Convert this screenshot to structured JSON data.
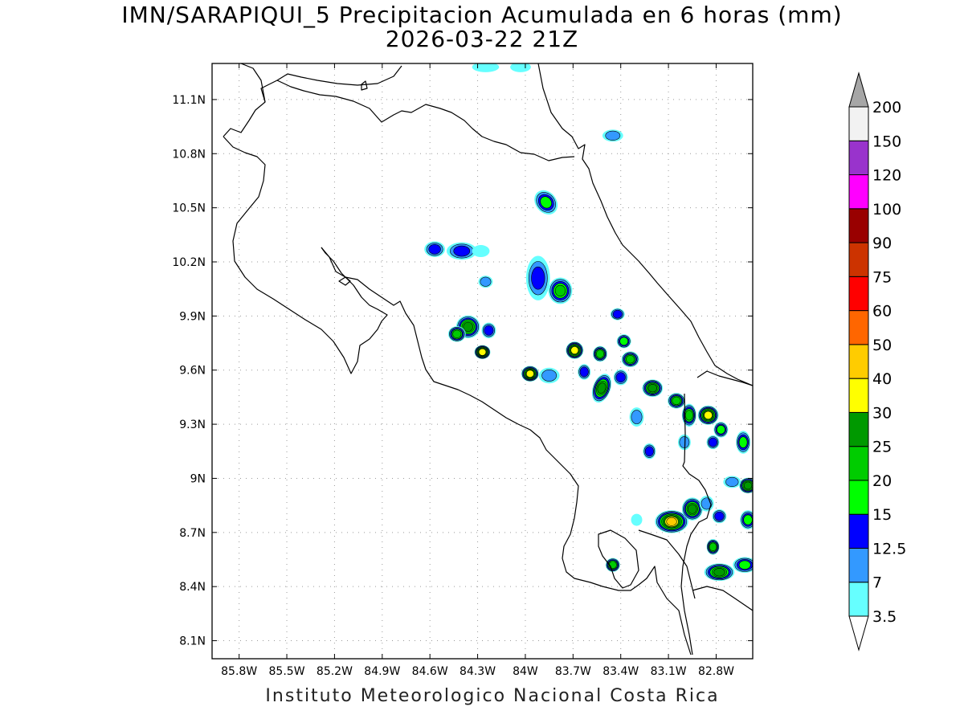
{
  "title": {
    "line1": "IMN/SARAPIQUI_5 Precipitacion Acumulada en 6 horas (mm)",
    "line2": "2026-03-22 21Z"
  },
  "footer": "Instituto Meteorologico Nacional Costa Rica",
  "map": {
    "lat_ticks": [
      {
        "value": 11.1,
        "label": "11.1N"
      },
      {
        "value": 10.8,
        "label": "10.8N"
      },
      {
        "value": 10.5,
        "label": "10.5N"
      },
      {
        "value": 10.2,
        "label": "10.2N"
      },
      {
        "value": 9.9,
        "label": "9.9N"
      },
      {
        "value": 9.6,
        "label": "9.6N"
      },
      {
        "value": 9.3,
        "label": "9.3N"
      },
      {
        "value": 9.0,
        "label": "9N"
      },
      {
        "value": 8.7,
        "label": "8.7N"
      },
      {
        "value": 8.4,
        "label": "8.4N"
      },
      {
        "value": 8.1,
        "label": "8.1N"
      }
    ],
    "lon_ticks": [
      {
        "value": -85.8,
        "label": "85.8W"
      },
      {
        "value": -85.5,
        "label": "85.5W"
      },
      {
        "value": -85.2,
        "label": "85.2W"
      },
      {
        "value": -84.9,
        "label": "84.9W"
      },
      {
        "value": -84.6,
        "label": "84.6W"
      },
      {
        "value": -84.3,
        "label": "84.3W"
      },
      {
        "value": -84.0,
        "label": "84W"
      },
      {
        "value": -83.7,
        "label": "83.7W"
      },
      {
        "value": -83.4,
        "label": "83.4W"
      },
      {
        "value": -83.1,
        "label": "83.1W"
      },
      {
        "value": -82.8,
        "label": "82.8W"
      }
    ],
    "lon_range": [
      -85.97,
      -82.57
    ],
    "lat_range": [
      8.0,
      11.3
    ]
  },
  "colorbar": {
    "levels": [
      "3.5",
      "7",
      "12.5",
      "15",
      "20",
      "25",
      "30",
      "40",
      "50",
      "60",
      "75",
      "90",
      "100",
      "120",
      "150",
      "200"
    ],
    "colors": [
      "#66ffff",
      "#3399ff",
      "#0000ff",
      "#00ff00",
      "#00cc00",
      "#009900",
      "#ffff00",
      "#ffcc00",
      "#ff6600",
      "#ff0000",
      "#cc3300",
      "#990000",
      "#ff00ff",
      "#9933cc",
      "#f2f2f2"
    ],
    "over_color": "#a6a6a6",
    "under_color": "#ffffff"
  },
  "rain_cells": [
    {
      "lon": -84.25,
      "lat": 11.28,
      "rx": 0.07,
      "ry": 0.015,
      "level": 1
    },
    {
      "lon": -84.03,
      "lat": 11.28,
      "rx": 0.05,
      "ry": 0.015,
      "level": 1
    },
    {
      "lon": -83.45,
      "lat": 10.9,
      "rx": 0.05,
      "ry": 0.02,
      "level": 2
    },
    {
      "lon": -83.87,
      "lat": 10.53,
      "rx": 0.05,
      "ry": 0.06,
      "level": 4,
      "rot": -40
    },
    {
      "lon": -84.57,
      "lat": 10.27,
      "rx": 0.05,
      "ry": 0.03,
      "level": 3
    },
    {
      "lon": -84.4,
      "lat": 10.26,
      "rx": 0.08,
      "ry": 0.035,
      "level": 3
    },
    {
      "lon": -84.28,
      "lat": 10.26,
      "rx": 0.04,
      "ry": 0.02,
      "level": 1
    },
    {
      "lon": -84.25,
      "lat": 10.09,
      "rx": 0.03,
      "ry": 0.02,
      "level": 2
    },
    {
      "lon": -83.92,
      "lat": 10.11,
      "rx": 0.06,
      "ry": 0.11,
      "level": 3
    },
    {
      "lon": -83.78,
      "lat": 10.04,
      "rx": 0.06,
      "ry": 0.06,
      "level": 5
    },
    {
      "lon": -84.36,
      "lat": 9.84,
      "rx": 0.06,
      "ry": 0.05,
      "level": 6
    },
    {
      "lon": -84.43,
      "lat": 9.8,
      "rx": 0.04,
      "ry": 0.03,
      "level": 5
    },
    {
      "lon": -84.23,
      "lat": 9.82,
      "rx": 0.03,
      "ry": 0.03,
      "level": 3
    },
    {
      "lon": -84.27,
      "lat": 9.7,
      "rx": 0.035,
      "ry": 0.025,
      "level": 7
    },
    {
      "lon": -83.97,
      "lat": 9.58,
      "rx": 0.04,
      "ry": 0.03,
      "level": 7
    },
    {
      "lon": -83.85,
      "lat": 9.57,
      "rx": 0.05,
      "ry": 0.03,
      "level": 2
    },
    {
      "lon": -83.69,
      "lat": 9.71,
      "rx": 0.04,
      "ry": 0.035,
      "level": 7
    },
    {
      "lon": -83.53,
      "lat": 9.69,
      "rx": 0.03,
      "ry": 0.03,
      "level": 5
    },
    {
      "lon": -83.38,
      "lat": 9.76,
      "rx": 0.03,
      "ry": 0.025,
      "level": 4
    },
    {
      "lon": -83.42,
      "lat": 9.91,
      "rx": 0.03,
      "ry": 0.02,
      "level": 3
    },
    {
      "lon": -83.63,
      "lat": 9.59,
      "rx": 0.025,
      "ry": 0.03,
      "level": 3
    },
    {
      "lon": -83.52,
      "lat": 9.5,
      "rx": 0.04,
      "ry": 0.07,
      "level": 6,
      "rot": 20
    },
    {
      "lon": -83.34,
      "lat": 9.66,
      "rx": 0.04,
      "ry": 0.03,
      "level": 5
    },
    {
      "lon": -83.4,
      "lat": 9.56,
      "rx": 0.03,
      "ry": 0.03,
      "level": 3
    },
    {
      "lon": -83.2,
      "lat": 9.5,
      "rx": 0.05,
      "ry": 0.035,
      "level": 6
    },
    {
      "lon": -83.05,
      "lat": 9.43,
      "rx": 0.04,
      "ry": 0.03,
      "level": 5
    },
    {
      "lon": -82.97,
      "lat": 9.35,
      "rx": 0.03,
      "ry": 0.05,
      "level": 5
    },
    {
      "lon": -83.3,
      "lat": 9.34,
      "rx": 0.03,
      "ry": 0.04,
      "level": 2
    },
    {
      "lon": -83.22,
      "lat": 9.15,
      "rx": 0.025,
      "ry": 0.03,
      "level": 3
    },
    {
      "lon": -83.0,
      "lat": 9.2,
      "rx": 0.025,
      "ry": 0.03,
      "level": 2
    },
    {
      "lon": -82.85,
      "lat": 9.35,
      "rx": 0.05,
      "ry": 0.04,
      "level": 7
    },
    {
      "lon": -82.77,
      "lat": 9.27,
      "rx": 0.03,
      "ry": 0.03,
      "level": 4
    },
    {
      "lon": -82.82,
      "lat": 9.2,
      "rx": 0.025,
      "ry": 0.025,
      "level": 3
    },
    {
      "lon": -82.63,
      "lat": 9.2,
      "rx": 0.03,
      "ry": 0.05,
      "level": 4
    },
    {
      "lon": -82.6,
      "lat": 8.96,
      "rx": 0.04,
      "ry": 0.03,
      "level": 6
    },
    {
      "lon": -82.7,
      "lat": 8.98,
      "rx": 0.04,
      "ry": 0.02,
      "level": 2
    },
    {
      "lon": -83.08,
      "lat": 8.76,
      "rx": 0.09,
      "ry": 0.05,
      "level": 8
    },
    {
      "lon": -82.95,
      "lat": 8.83,
      "rx": 0.05,
      "ry": 0.05,
      "level": 6
    },
    {
      "lon": -82.86,
      "lat": 8.86,
      "rx": 0.03,
      "ry": 0.03,
      "level": 2
    },
    {
      "lon": -82.78,
      "lat": 8.79,
      "rx": 0.03,
      "ry": 0.025,
      "level": 3
    },
    {
      "lon": -82.6,
      "lat": 8.77,
      "rx": 0.035,
      "ry": 0.04,
      "level": 4
    },
    {
      "lon": -82.82,
      "lat": 8.62,
      "rx": 0.025,
      "ry": 0.03,
      "level": 5
    },
    {
      "lon": -82.78,
      "lat": 8.48,
      "rx": 0.08,
      "ry": 0.035,
      "level": 6
    },
    {
      "lon": -82.62,
      "lat": 8.52,
      "rx": 0.06,
      "ry": 0.03,
      "level": 4
    },
    {
      "lon": -83.45,
      "lat": 8.52,
      "rx": 0.03,
      "ry": 0.025,
      "level": 5
    },
    {
      "lon": -83.3,
      "lat": 8.77,
      "rx": 0.02,
      "ry": 0.02,
      "level": 1
    }
  ]
}
